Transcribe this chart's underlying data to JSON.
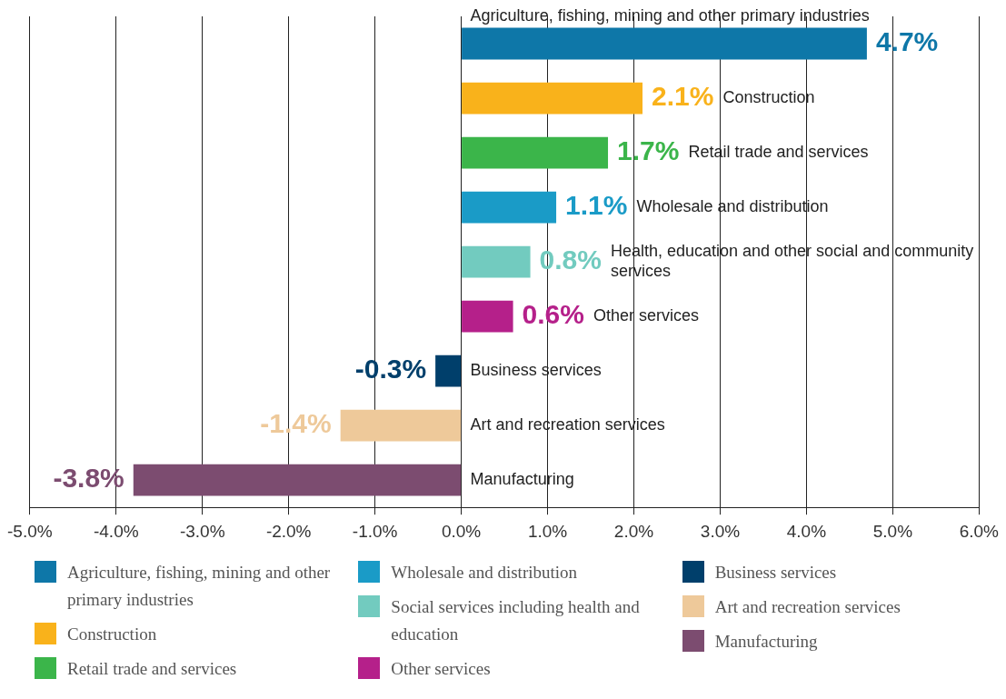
{
  "chart_data": {
    "type": "bar",
    "orientation": "horizontal",
    "stacked": true,
    "categories": [
      "Agriculture, fishing, mining and other primary industries",
      "Construction",
      "Retail trade and services",
      "Wholesale and distribution",
      "Health, education and other social and community services",
      "Other services",
      "Business services",
      "Art and recreation services",
      "Manufacturing"
    ],
    "series": [
      {
        "name": "Agriculture, fishing, mining and other primary industries",
        "color": "#0e77a8",
        "values": [
          4.7,
          null,
          null,
          null,
          null,
          null,
          null,
          null,
          null
        ],
        "value_labels": [
          "4.7%",
          null,
          null,
          null,
          null,
          null,
          null,
          null,
          null
        ]
      },
      {
        "name": "Construction",
        "color": "#f9b21b",
        "values": [
          null,
          2.1,
          null,
          null,
          null,
          null,
          null,
          null,
          null
        ],
        "value_labels": [
          null,
          "2.1%",
          null,
          null,
          null,
          null,
          null,
          null,
          null
        ]
      },
      {
        "name": "Retail trade and services",
        "color": "#3bb54a",
        "values": [
          null,
          null,
          1.7,
          null,
          null,
          null,
          null,
          null,
          null
        ],
        "value_labels": [
          null,
          null,
          "1.7%",
          null,
          null,
          null,
          null,
          null,
          null
        ]
      },
      {
        "name": "Wholesale and distribution",
        "color": "#1a9bc7",
        "values": [
          null,
          null,
          null,
          1.1,
          null,
          null,
          null,
          null,
          null
        ],
        "value_labels": [
          null,
          null,
          null,
          "1.1%",
          null,
          null,
          null,
          null,
          null
        ]
      },
      {
        "name": "Social services including health and education",
        "color": "#72cbbf",
        "values": [
          null,
          null,
          null,
          null,
          0.8,
          null,
          null,
          null,
          null
        ],
        "value_labels": [
          null,
          null,
          null,
          null,
          "0.8%",
          null,
          null,
          null,
          null
        ]
      },
      {
        "name": "Other services",
        "color": "#b5208a",
        "values": [
          null,
          null,
          null,
          null,
          null,
          0.6,
          null,
          null,
          null
        ],
        "value_labels": [
          null,
          null,
          null,
          null,
          null,
          "0.6%",
          null,
          null,
          null
        ]
      },
      {
        "name": "Business services",
        "color": "#003f6b",
        "values": [
          null,
          null,
          null,
          null,
          null,
          null,
          -0.3,
          null,
          null
        ],
        "value_labels": [
          null,
          null,
          null,
          null,
          null,
          null,
          "-0.3%",
          null,
          null
        ]
      },
      {
        "name": "Art and recreation services",
        "color": "#eec99a",
        "values": [
          null,
          null,
          null,
          null,
          null,
          null,
          null,
          -1.4,
          null
        ],
        "value_labels": [
          null,
          null,
          null,
          null,
          null,
          null,
          null,
          "-1.4%",
          null
        ]
      },
      {
        "name": "Manufacturing",
        "color": "#7c4c70",
        "values": [
          null,
          null,
          null,
          null,
          null,
          null,
          null,
          null,
          -3.8
        ],
        "value_labels": [
          null,
          null,
          null,
          null,
          null,
          null,
          null,
          null,
          "-3.8%"
        ]
      }
    ],
    "xlim": [
      -5,
      6
    ],
    "xticks": [
      {
        "value": -5,
        "label": "-5.0%"
      },
      {
        "value": -4,
        "label": "-4.0%"
      },
      {
        "value": -3,
        "label": "-3.0%"
      },
      {
        "value": -2,
        "label": "-2.0%"
      },
      {
        "value": -1,
        "label": "-1.0%"
      },
      {
        "value": 0,
        "label": "0.0%"
      },
      {
        "value": 1,
        "label": "1.0%"
      },
      {
        "value": 2,
        "label": "2.0%"
      },
      {
        "value": 3,
        "label": "3.0%"
      },
      {
        "value": 4,
        "label": "4.0%"
      },
      {
        "value": 5,
        "label": "5.0%"
      },
      {
        "value": 6,
        "label": "6.0%"
      }
    ],
    "grid": "x",
    "legend": "bottom"
  }
}
